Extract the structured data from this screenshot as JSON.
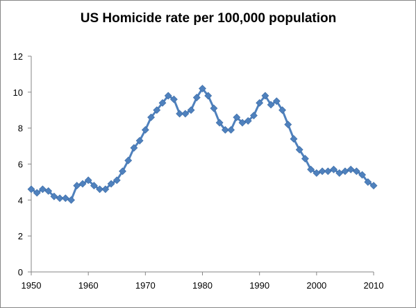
{
  "chart_data": {
    "type": "line",
    "title": "US Homicide rate per 100,000 population",
    "xlabel": "",
    "ylabel": "",
    "xlim": [
      1950,
      2010
    ],
    "ylim": [
      0,
      12
    ],
    "x_ticks": [
      1950,
      1960,
      1970,
      1980,
      1990,
      2000,
      2010
    ],
    "y_ticks": [
      0,
      2,
      4,
      6,
      8,
      10,
      12
    ],
    "grid": false,
    "legend": "none",
    "series": [
      {
        "color": "#4f81bd",
        "marker": "diamond",
        "points": [
          {
            "x": 1950,
            "y": 4.6
          },
          {
            "x": 1951,
            "y": 4.4
          },
          {
            "x": 1952,
            "y": 4.6
          },
          {
            "x": 1953,
            "y": 4.5
          },
          {
            "x": 1954,
            "y": 4.2
          },
          {
            "x": 1955,
            "y": 4.1
          },
          {
            "x": 1956,
            "y": 4.1
          },
          {
            "x": 1957,
            "y": 4.0
          },
          {
            "x": 1958,
            "y": 4.8
          },
          {
            "x": 1959,
            "y": 4.9
          },
          {
            "x": 1960,
            "y": 5.1
          },
          {
            "x": 1961,
            "y": 4.8
          },
          {
            "x": 1962,
            "y": 4.6
          },
          {
            "x": 1963,
            "y": 4.6
          },
          {
            "x": 1964,
            "y": 4.9
          },
          {
            "x": 1965,
            "y": 5.1
          },
          {
            "x": 1966,
            "y": 5.6
          },
          {
            "x": 1967,
            "y": 6.2
          },
          {
            "x": 1968,
            "y": 6.9
          },
          {
            "x": 1969,
            "y": 7.3
          },
          {
            "x": 1970,
            "y": 7.9
          },
          {
            "x": 1971,
            "y": 8.6
          },
          {
            "x": 1972,
            "y": 9.0
          },
          {
            "x": 1973,
            "y": 9.4
          },
          {
            "x": 1974,
            "y": 9.8
          },
          {
            "x": 1975,
            "y": 9.6
          },
          {
            "x": 1976,
            "y": 8.8
          },
          {
            "x": 1977,
            "y": 8.8
          },
          {
            "x": 1978,
            "y": 9.0
          },
          {
            "x": 1979,
            "y": 9.7
          },
          {
            "x": 1980,
            "y": 10.2
          },
          {
            "x": 1981,
            "y": 9.8
          },
          {
            "x": 1982,
            "y": 9.1
          },
          {
            "x": 1983,
            "y": 8.3
          },
          {
            "x": 1984,
            "y": 7.9
          },
          {
            "x": 1985,
            "y": 7.9
          },
          {
            "x": 1986,
            "y": 8.6
          },
          {
            "x": 1987,
            "y": 8.3
          },
          {
            "x": 1988,
            "y": 8.4
          },
          {
            "x": 1989,
            "y": 8.7
          },
          {
            "x": 1990,
            "y": 9.4
          },
          {
            "x": 1991,
            "y": 9.8
          },
          {
            "x": 1992,
            "y": 9.3
          },
          {
            "x": 1993,
            "y": 9.5
          },
          {
            "x": 1994,
            "y": 9.0
          },
          {
            "x": 1995,
            "y": 8.2
          },
          {
            "x": 1996,
            "y": 7.4
          },
          {
            "x": 1997,
            "y": 6.8
          },
          {
            "x": 1998,
            "y": 6.3
          },
          {
            "x": 1999,
            "y": 5.7
          },
          {
            "x": 2000,
            "y": 5.5
          },
          {
            "x": 2001,
            "y": 5.6
          },
          {
            "x": 2002,
            "y": 5.6
          },
          {
            "x": 2003,
            "y": 5.7
          },
          {
            "x": 2004,
            "y": 5.5
          },
          {
            "x": 2005,
            "y": 5.6
          },
          {
            "x": 2006,
            "y": 5.7
          },
          {
            "x": 2007,
            "y": 5.6
          },
          {
            "x": 2008,
            "y": 5.4
          },
          {
            "x": 2009,
            "y": 5.0
          },
          {
            "x": 2010,
            "y": 4.8
          }
        ]
      }
    ]
  }
}
